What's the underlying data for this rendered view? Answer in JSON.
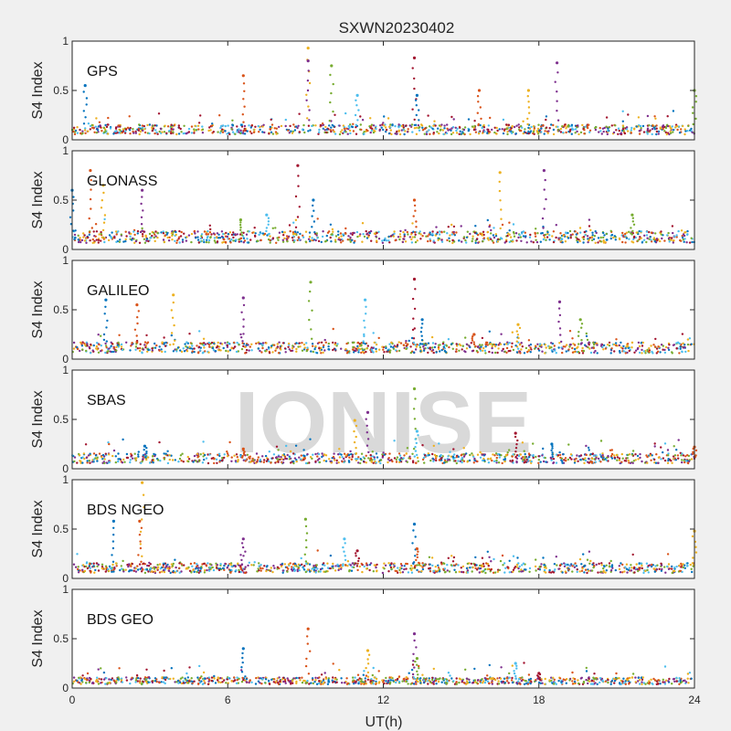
{
  "chart_data": {
    "type": "scatter",
    "title": "SXWN20230402",
    "xlabel": "UT(h)",
    "ylabel": "S4 Index",
    "xlim": [
      0,
      24
    ],
    "ylim": [
      0,
      1
    ],
    "xticks": [
      0,
      6,
      12,
      18,
      24
    ],
    "yticks": [
      0,
      0.5,
      1
    ],
    "watermark": "IONISE",
    "colors": [
      "#0072BD",
      "#D95319",
      "#EDB120",
      "#7E2F8E",
      "#77AC30",
      "#4DBEEE",
      "#A2142F"
    ],
    "panels": [
      {
        "name": "GPS",
        "baseline": 0.1,
        "spikes": [
          {
            "x": 0.5,
            "y": 0.55
          },
          {
            "x": 6.6,
            "y": 0.65
          },
          {
            "x": 9.1,
            "y": 0.93
          },
          {
            "x": 9.1,
            "y": 0.8
          },
          {
            "x": 10.0,
            "y": 0.75
          },
          {
            "x": 11.0,
            "y": 0.45
          },
          {
            "x": 13.2,
            "y": 0.83
          },
          {
            "x": 13.3,
            "y": 0.45
          },
          {
            "x": 15.7,
            "y": 0.5
          },
          {
            "x": 17.6,
            "y": 0.5
          },
          {
            "x": 18.7,
            "y": 0.78
          },
          {
            "x": 24.0,
            "y": 0.5
          }
        ]
      },
      {
        "name": "GLONASS",
        "baseline": 0.12,
        "spikes": [
          {
            "x": 0.0,
            "y": 0.6
          },
          {
            "x": 0.7,
            "y": 0.8
          },
          {
            "x": 1.2,
            "y": 0.65
          },
          {
            "x": 2.7,
            "y": 0.6
          },
          {
            "x": 6.5,
            "y": 0.3
          },
          {
            "x": 7.5,
            "y": 0.35
          },
          {
            "x": 8.7,
            "y": 0.85
          },
          {
            "x": 9.3,
            "y": 0.5
          },
          {
            "x": 13.2,
            "y": 0.5
          },
          {
            "x": 16.5,
            "y": 0.78
          },
          {
            "x": 18.2,
            "y": 0.8
          },
          {
            "x": 21.6,
            "y": 0.35
          }
        ]
      },
      {
        "name": "GALILEO",
        "baseline": 0.11,
        "spikes": [
          {
            "x": 1.3,
            "y": 0.6
          },
          {
            "x": 2.5,
            "y": 0.55
          },
          {
            "x": 3.9,
            "y": 0.65
          },
          {
            "x": 6.6,
            "y": 0.62
          },
          {
            "x": 9.2,
            "y": 0.78
          },
          {
            "x": 11.3,
            "y": 0.6
          },
          {
            "x": 13.2,
            "y": 0.81
          },
          {
            "x": 13.5,
            "y": 0.4
          },
          {
            "x": 15.5,
            "y": 0.25
          },
          {
            "x": 17.2,
            "y": 0.35
          },
          {
            "x": 18.8,
            "y": 0.58
          },
          {
            "x": 19.6,
            "y": 0.4
          }
        ]
      },
      {
        "name": "SBAS",
        "baseline": 0.1,
        "spikes": [
          {
            "x": 2.8,
            "y": 0.23
          },
          {
            "x": 6.6,
            "y": 0.2
          },
          {
            "x": 10.9,
            "y": 0.49
          },
          {
            "x": 11.4,
            "y": 0.57
          },
          {
            "x": 13.2,
            "y": 0.81
          },
          {
            "x": 13.3,
            "y": 0.38
          },
          {
            "x": 17.1,
            "y": 0.36
          },
          {
            "x": 18.5,
            "y": 0.25
          },
          {
            "x": 24.0,
            "y": 0.22
          }
        ]
      },
      {
        "name": "BDS NGEO",
        "baseline": 0.1,
        "spikes": [
          {
            "x": 1.6,
            "y": 0.58
          },
          {
            "x": 2.6,
            "y": 0.58
          },
          {
            "x": 2.7,
            "y": 0.97
          },
          {
            "x": 6.6,
            "y": 0.4
          },
          {
            "x": 9.0,
            "y": 0.6
          },
          {
            "x": 10.5,
            "y": 0.4
          },
          {
            "x": 11.0,
            "y": 0.28
          },
          {
            "x": 13.2,
            "y": 0.55
          },
          {
            "x": 13.3,
            "y": 0.3
          },
          {
            "x": 24.0,
            "y": 0.48
          }
        ]
      },
      {
        "name": "BDS GEO",
        "baseline": 0.07,
        "spikes": [
          {
            "x": 6.6,
            "y": 0.4
          },
          {
            "x": 9.1,
            "y": 0.6
          },
          {
            "x": 11.4,
            "y": 0.38
          },
          {
            "x": 13.2,
            "y": 0.55
          },
          {
            "x": 13.3,
            "y": 0.3
          },
          {
            "x": 17.1,
            "y": 0.25
          },
          {
            "x": 18.0,
            "y": 0.15
          }
        ]
      }
    ]
  }
}
